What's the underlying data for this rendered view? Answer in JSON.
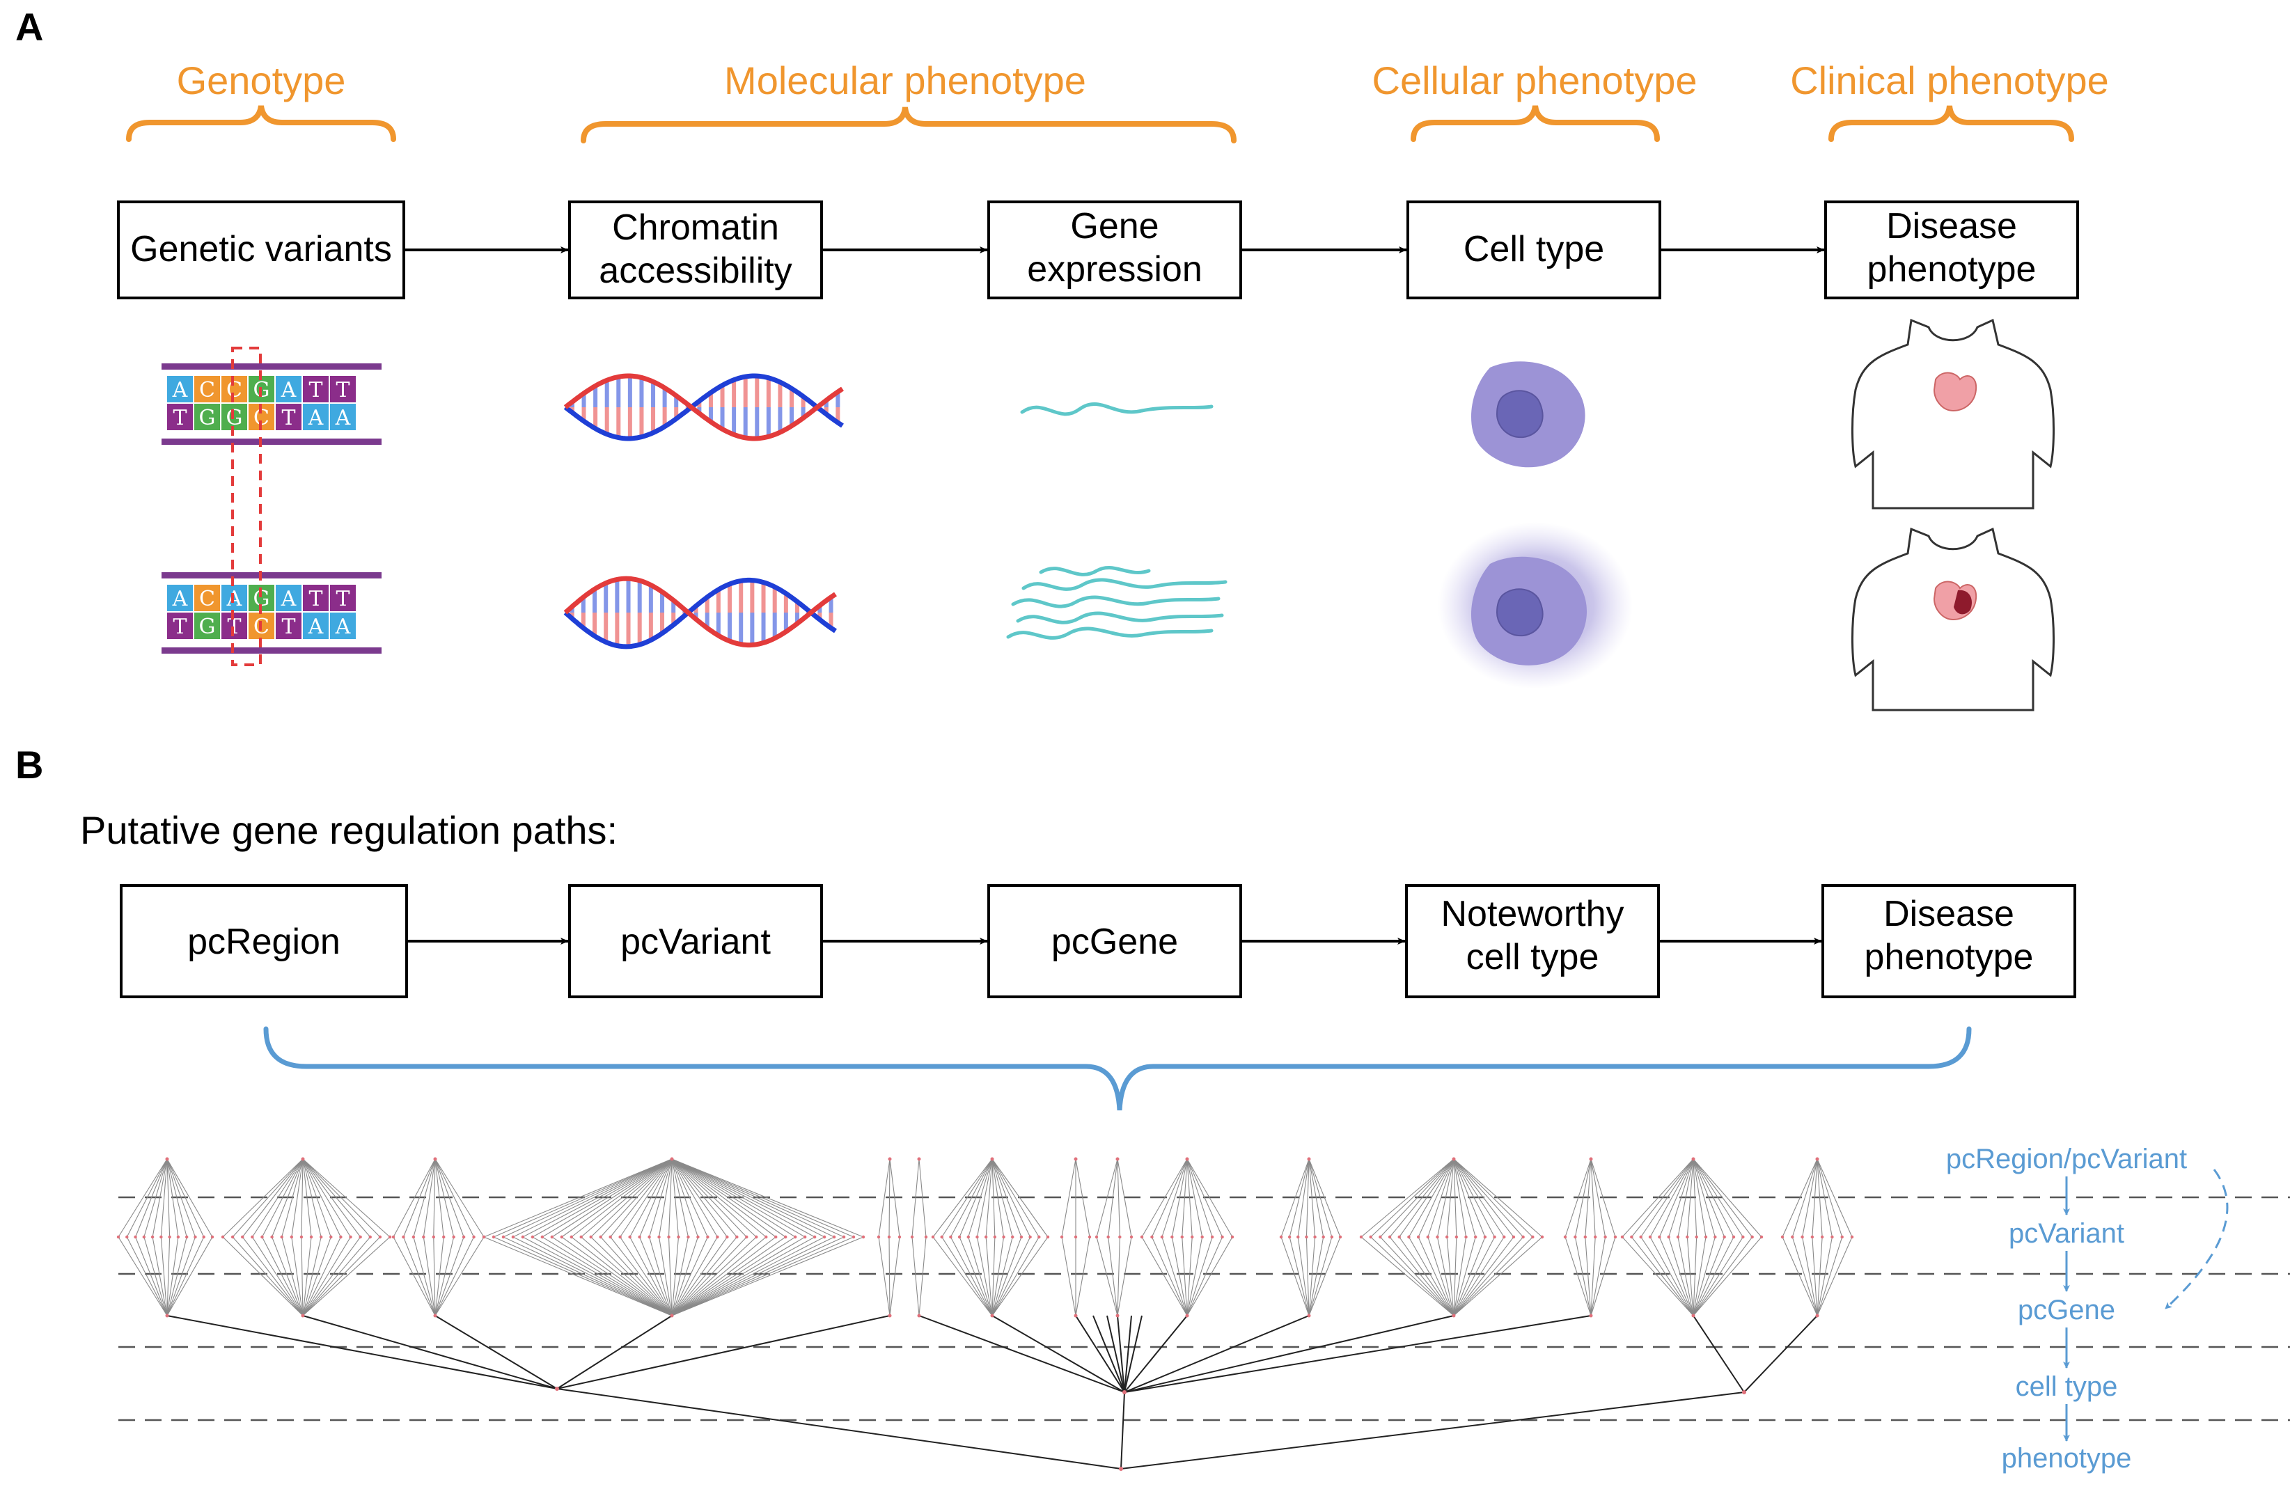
{
  "panel_a": {
    "label": "A",
    "categories": [
      "Genotype",
      "Molecular phenotype",
      "Cellular phenotype",
      "Clinical phenotype"
    ],
    "boxes": [
      {
        "lines": [
          "Genetic variants"
        ]
      },
      {
        "lines": [
          "Chromatin",
          "accessibility"
        ]
      },
      {
        "lines": [
          "Gene",
          "expression"
        ]
      },
      {
        "lines": [
          "Cell type"
        ]
      },
      {
        "lines": [
          "Disease",
          "phenotype"
        ]
      }
    ],
    "dna_top": {
      "upper": [
        "A",
        "C",
        "C",
        "G",
        "A",
        "T",
        "T"
      ],
      "lower": [
        "T",
        "G",
        "G",
        "C",
        "T",
        "A",
        "A"
      ]
    },
    "dna_bottom": {
      "upper": [
        "A",
        "C",
        "A",
        "G",
        "A",
        "T",
        "T"
      ],
      "lower": [
        "T",
        "G",
        "T",
        "C",
        "T",
        "A",
        "A"
      ]
    },
    "base_colors": {
      "A": "#3fa9e0",
      "C": "#f0962e",
      "G": "#4fae4e",
      "T": "#8b2d8a"
    },
    "colors": {
      "orange": "#f0962e",
      "blue": "#5a9bd3",
      "dna_red": "#e33b3b",
      "dna_blue": "#1f3fd6",
      "rna": "#5ec7c9",
      "cell": "#9c93d6",
      "nucleus": "#6a66b6"
    }
  },
  "panel_b": {
    "label": "B",
    "subtitle": "Putative gene regulation paths:",
    "boxes": [
      {
        "lines": [
          "pcRegion"
        ]
      },
      {
        "lines": [
          "pcVariant"
        ]
      },
      {
        "lines": [
          "pcGene"
        ]
      },
      {
        "lines": [
          "Noteworthy",
          "cell type"
        ]
      },
      {
        "lines": [
          "Disease",
          "phenotype"
        ]
      }
    ],
    "legend": [
      "pcRegion/pcVariant",
      "pcVariant",
      "pcGene",
      "cell type",
      "phenotype"
    ]
  }
}
